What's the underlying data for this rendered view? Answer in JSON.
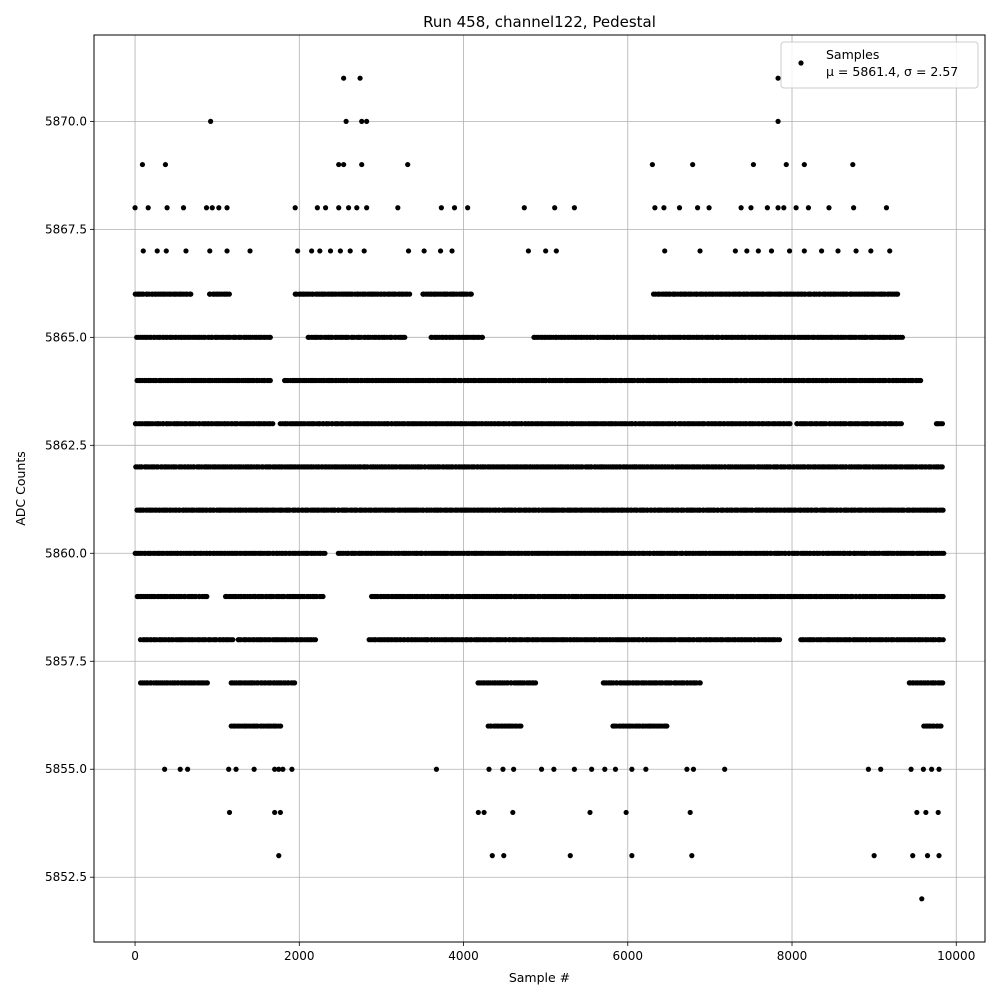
{
  "chart_data": {
    "type": "scatter",
    "title": "Run 458, channel122, Pedestal",
    "xlabel": "Sample #",
    "ylabel": "ADC Counts",
    "xlim": [
      -500,
      10350
    ],
    "ylim": [
      5851,
      5872
    ],
    "xticks": [
      0,
      2000,
      4000,
      6000,
      8000,
      10000
    ],
    "xtick_labels": [
      "0",
      "2000",
      "4000",
      "6000",
      "8000",
      "10000"
    ],
    "yticks": [
      5852.5,
      5855.0,
      5857.5,
      5860.0,
      5862.5,
      5865.0,
      5867.5,
      5870.0
    ],
    "ytick_labels": [
      "5852.5",
      "5855.0",
      "5857.5",
      "5860.0",
      "5862.5",
      "5865.0",
      "5867.5",
      "5870.0"
    ],
    "grid": true,
    "legend_position": "top-right",
    "legend": {
      "label": "Samples",
      "stats": "μ = 5861.4, σ = 2.57"
    },
    "marker_color": "#000000",
    "series": [
      {
        "name": "Samples",
        "level_ranges": [
          {
            "y": 5861,
            "ranges": [
              [
                0,
                9850
              ]
            ]
          },
          {
            "y": 5862,
            "ranges": [
              [
                0,
                9850
              ]
            ]
          },
          {
            "y": 5860,
            "ranges": [
              [
                0,
                2330
              ],
              [
                2450,
                9850
              ]
            ]
          },
          {
            "y": 5863,
            "ranges": [
              [
                0,
                1680
              ],
              [
                1750,
                8000
              ],
              [
                8050,
                9350
              ],
              [
                9750,
                9850
              ]
            ]
          },
          {
            "y": 5859,
            "ranges": [
              [
                0,
                900
              ],
              [
                1100,
                2300
              ],
              [
                2850,
                9850
              ]
            ]
          },
          {
            "y": 5864,
            "ranges": [
              [
                0,
                1650
              ],
              [
                1800,
                9580
              ]
            ]
          },
          {
            "y": 5858,
            "ranges": [
              [
                50,
                1200
              ],
              [
                1250,
                2200
              ],
              [
                2850,
                7850
              ],
              [
                8100,
                9850
              ]
            ]
          },
          {
            "y": 5865,
            "ranges": [
              [
                0,
                1650
              ],
              [
                2100,
                3300
              ],
              [
                3600,
                4250
              ],
              [
                4850,
                9350
              ]
            ]
          },
          {
            "y": 5857,
            "ranges": [
              [
                50,
                900
              ],
              [
                1150,
                1950
              ],
              [
                4150,
                4900
              ],
              [
                5700,
                6900
              ],
              [
                9400,
                9850
              ]
            ]
          },
          {
            "y": 5866,
            "ranges": [
              [
                0,
                700
              ],
              [
                900,
                1150
              ],
              [
                1950,
                3350
              ],
              [
                3500,
                4100
              ],
              [
                6300,
                9300
              ]
            ]
          },
          {
            "y": 5856,
            "ranges": [
              [
                1150,
                1780
              ],
              [
                4300,
                4700
              ],
              [
                5800,
                6500
              ],
              [
                9600,
                9850
              ]
            ]
          }
        ],
        "points": [
          {
            "x": 0,
            "y": 5868
          },
          {
            "x": 160,
            "y": 5868
          },
          {
            "x": 390,
            "y": 5868
          },
          {
            "x": 590,
            "y": 5868
          },
          {
            "x": 870,
            "y": 5868
          },
          {
            "x": 940,
            "y": 5868
          },
          {
            "x": 1020,
            "y": 5868
          },
          {
            "x": 1120,
            "y": 5868
          },
          {
            "x": 1950,
            "y": 5868
          },
          {
            "x": 2220,
            "y": 5868
          },
          {
            "x": 2320,
            "y": 5868
          },
          {
            "x": 2480,
            "y": 5868
          },
          {
            "x": 2600,
            "y": 5868
          },
          {
            "x": 2700,
            "y": 5868
          },
          {
            "x": 2820,
            "y": 5868
          },
          {
            "x": 3200,
            "y": 5868
          },
          {
            "x": 3730,
            "y": 5868
          },
          {
            "x": 3890,
            "y": 5868
          },
          {
            "x": 4050,
            "y": 5868
          },
          {
            "x": 4740,
            "y": 5868
          },
          {
            "x": 5110,
            "y": 5868
          },
          {
            "x": 5350,
            "y": 5868
          },
          {
            "x": 6330,
            "y": 5868
          },
          {
            "x": 6440,
            "y": 5868
          },
          {
            "x": 6630,
            "y": 5868
          },
          {
            "x": 6850,
            "y": 5868
          },
          {
            "x": 6990,
            "y": 5868
          },
          {
            "x": 7380,
            "y": 5868
          },
          {
            "x": 7500,
            "y": 5868
          },
          {
            "x": 7700,
            "y": 5868
          },
          {
            "x": 7830,
            "y": 5868
          },
          {
            "x": 7900,
            "y": 5868
          },
          {
            "x": 8050,
            "y": 5868
          },
          {
            "x": 8200,
            "y": 5868
          },
          {
            "x": 8450,
            "y": 5868
          },
          {
            "x": 8750,
            "y": 5868
          },
          {
            "x": 9150,
            "y": 5868
          },
          {
            "x": 90,
            "y": 5869
          },
          {
            "x": 370,
            "y": 5869
          },
          {
            "x": 2480,
            "y": 5869
          },
          {
            "x": 2540,
            "y": 5869
          },
          {
            "x": 2760,
            "y": 5869
          },
          {
            "x": 3320,
            "y": 5869
          },
          {
            "x": 6300,
            "y": 5869
          },
          {
            "x": 6790,
            "y": 5869
          },
          {
            "x": 7530,
            "y": 5869
          },
          {
            "x": 7930,
            "y": 5869
          },
          {
            "x": 8150,
            "y": 5869
          },
          {
            "x": 8740,
            "y": 5869
          },
          {
            "x": 920,
            "y": 5870
          },
          {
            "x": 2570,
            "y": 5870
          },
          {
            "x": 2760,
            "y": 5870
          },
          {
            "x": 2820,
            "y": 5870
          },
          {
            "x": 7830,
            "y": 5870
          },
          {
            "x": 2540,
            "y": 5871
          },
          {
            "x": 2740,
            "y": 5871
          },
          {
            "x": 7830,
            "y": 5871
          },
          {
            "x": 100,
            "y": 5867
          },
          {
            "x": 270,
            "y": 5867
          },
          {
            "x": 380,
            "y": 5867
          },
          {
            "x": 620,
            "y": 5867
          },
          {
            "x": 910,
            "y": 5867
          },
          {
            "x": 1120,
            "y": 5867
          },
          {
            "x": 1400,
            "y": 5867
          },
          {
            "x": 1980,
            "y": 5867
          },
          {
            "x": 2150,
            "y": 5867
          },
          {
            "x": 2250,
            "y": 5867
          },
          {
            "x": 2380,
            "y": 5867
          },
          {
            "x": 2500,
            "y": 5867
          },
          {
            "x": 2620,
            "y": 5867
          },
          {
            "x": 2790,
            "y": 5867
          },
          {
            "x": 3330,
            "y": 5867
          },
          {
            "x": 3520,
            "y": 5867
          },
          {
            "x": 3720,
            "y": 5867
          },
          {
            "x": 3860,
            "y": 5867
          },
          {
            "x": 4790,
            "y": 5867
          },
          {
            "x": 5000,
            "y": 5867
          },
          {
            "x": 5130,
            "y": 5867
          },
          {
            "x": 6450,
            "y": 5867
          },
          {
            "x": 6880,
            "y": 5867
          },
          {
            "x": 7310,
            "y": 5867
          },
          {
            "x": 7450,
            "y": 5867
          },
          {
            "x": 7590,
            "y": 5867
          },
          {
            "x": 7750,
            "y": 5867
          },
          {
            "x": 7970,
            "y": 5867
          },
          {
            "x": 8150,
            "y": 5867
          },
          {
            "x": 8360,
            "y": 5867
          },
          {
            "x": 8560,
            "y": 5867
          },
          {
            "x": 8780,
            "y": 5867
          },
          {
            "x": 8960,
            "y": 5867
          },
          {
            "x": 9190,
            "y": 5867
          },
          {
            "x": 360,
            "y": 5855
          },
          {
            "x": 550,
            "y": 5855
          },
          {
            "x": 640,
            "y": 5855
          },
          {
            "x": 1140,
            "y": 5855
          },
          {
            "x": 1230,
            "y": 5855
          },
          {
            "x": 1450,
            "y": 5855
          },
          {
            "x": 1700,
            "y": 5855
          },
          {
            "x": 1750,
            "y": 5855
          },
          {
            "x": 1800,
            "y": 5855
          },
          {
            "x": 1910,
            "y": 5855
          },
          {
            "x": 3670,
            "y": 5855
          },
          {
            "x": 4310,
            "y": 5855
          },
          {
            "x": 4480,
            "y": 5855
          },
          {
            "x": 4610,
            "y": 5855
          },
          {
            "x": 4950,
            "y": 5855
          },
          {
            "x": 5100,
            "y": 5855
          },
          {
            "x": 5350,
            "y": 5855
          },
          {
            "x": 5560,
            "y": 5855
          },
          {
            "x": 5720,
            "y": 5855
          },
          {
            "x": 5850,
            "y": 5855
          },
          {
            "x": 6050,
            "y": 5855
          },
          {
            "x": 6220,
            "y": 5855
          },
          {
            "x": 6720,
            "y": 5855
          },
          {
            "x": 6800,
            "y": 5855
          },
          {
            "x": 7180,
            "y": 5855
          },
          {
            "x": 8930,
            "y": 5855
          },
          {
            "x": 9080,
            "y": 5855
          },
          {
            "x": 9450,
            "y": 5855
          },
          {
            "x": 9600,
            "y": 5855
          },
          {
            "x": 9700,
            "y": 5855
          },
          {
            "x": 9790,
            "y": 5855
          },
          {
            "x": 1150,
            "y": 5854
          },
          {
            "x": 1700,
            "y": 5854
          },
          {
            "x": 1770,
            "y": 5854
          },
          {
            "x": 4180,
            "y": 5854
          },
          {
            "x": 4250,
            "y": 5854
          },
          {
            "x": 4600,
            "y": 5854
          },
          {
            "x": 5540,
            "y": 5854
          },
          {
            "x": 5980,
            "y": 5854
          },
          {
            "x": 6760,
            "y": 5854
          },
          {
            "x": 9520,
            "y": 5854
          },
          {
            "x": 9630,
            "y": 5854
          },
          {
            "x": 9780,
            "y": 5854
          },
          {
            "x": 1750,
            "y": 5853
          },
          {
            "x": 4350,
            "y": 5853
          },
          {
            "x": 4490,
            "y": 5853
          },
          {
            "x": 5300,
            "y": 5853
          },
          {
            "x": 6050,
            "y": 5853
          },
          {
            "x": 6780,
            "y": 5853
          },
          {
            "x": 9000,
            "y": 5853
          },
          {
            "x": 9470,
            "y": 5853
          },
          {
            "x": 9650,
            "y": 5853
          },
          {
            "x": 9790,
            "y": 5853
          },
          {
            "x": 9580,
            "y": 5852
          }
        ]
      }
    ]
  }
}
